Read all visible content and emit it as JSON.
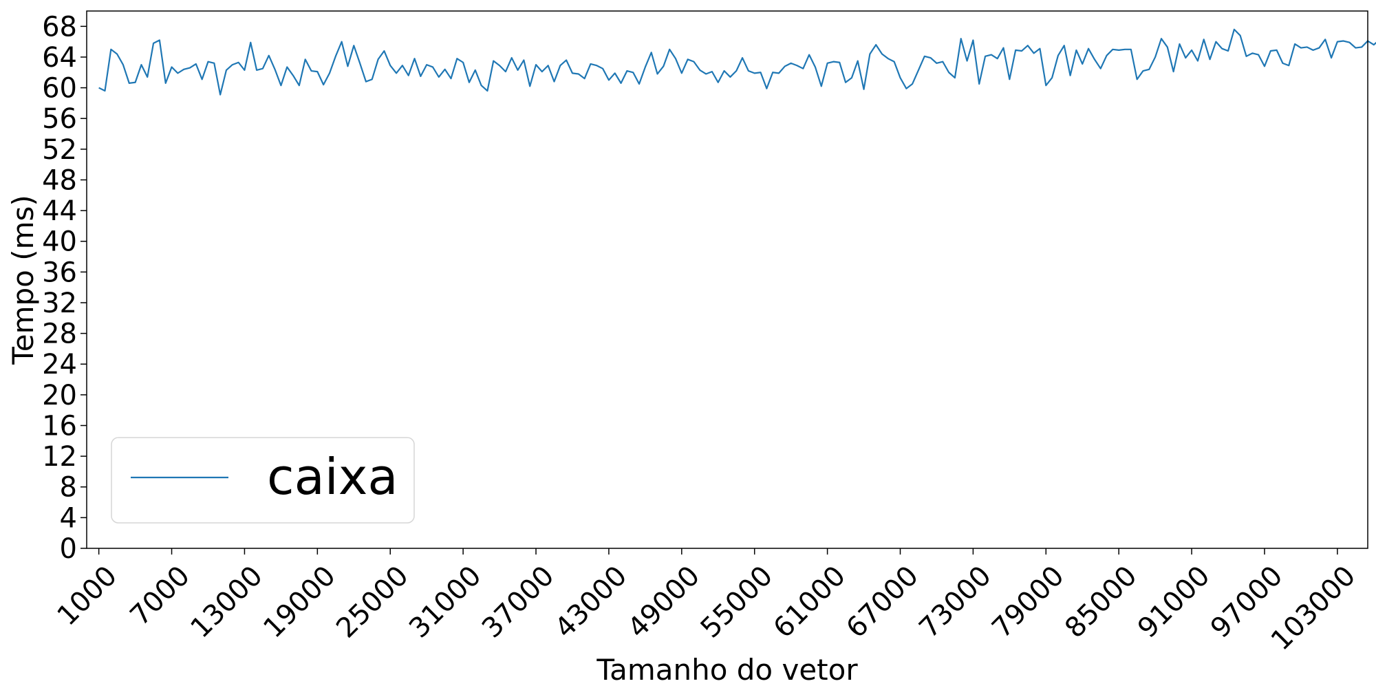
{
  "chart_data": {
    "type": "line",
    "title": "",
    "xlabel": "Tamanho do vetor",
    "ylabel": "Tempo (ms)",
    "xlim": [
      0,
      105500
    ],
    "ylim": [
      0,
      70
    ],
    "x_ticks": [
      1000,
      7000,
      13000,
      19000,
      25000,
      31000,
      37000,
      43000,
      49000,
      55000,
      61000,
      67000,
      73000,
      79000,
      85000,
      91000,
      97000,
      103000
    ],
    "y_ticks": [
      0,
      4,
      8,
      12,
      16,
      20,
      24,
      28,
      32,
      36,
      40,
      44,
      48,
      52,
      56,
      60,
      64,
      68
    ],
    "grid": false,
    "legend_position": "lower-left",
    "colors": {
      "series": "#1f77b4"
    },
    "x_start": 1000,
    "x_step": 500,
    "series": [
      {
        "name": "caixa",
        "values": [
          60.0,
          59.6,
          65.0,
          64.4,
          63.0,
          60.6,
          60.7,
          63.0,
          61.4,
          65.8,
          66.2,
          60.6,
          62.7,
          61.9,
          62.4,
          62.6,
          63.1,
          61.1,
          63.4,
          63.2,
          59.1,
          62.3,
          63.0,
          63.3,
          62.3,
          65.9,
          62.3,
          62.5,
          64.2,
          62.4,
          60.3,
          62.7,
          61.6,
          60.3,
          63.7,
          62.2,
          62.1,
          60.4,
          61.9,
          64.1,
          66.0,
          62.8,
          65.5,
          63.2,
          60.8,
          61.1,
          63.7,
          64.8,
          62.9,
          61.9,
          62.9,
          61.6,
          63.8,
          61.5,
          63.0,
          62.7,
          61.4,
          62.4,
          61.2,
          63.8,
          63.3,
          60.7,
          62.3,
          60.3,
          59.6,
          63.5,
          62.9,
          62.1,
          63.9,
          62.3,
          63.6,
          60.2,
          63.0,
          62.1,
          62.9,
          60.8,
          62.9,
          63.6,
          61.9,
          61.8,
          61.2,
          63.1,
          62.9,
          62.5,
          61.0,
          61.9,
          60.6,
          62.2,
          62.0,
          60.5,
          62.7,
          64.6,
          61.8,
          62.8,
          65.0,
          63.8,
          61.9,
          63.7,
          63.4,
          62.3,
          61.8,
          62.1,
          60.7,
          62.2,
          61.4,
          62.2,
          63.9,
          62.2,
          61.9,
          62.0,
          59.9,
          62.0,
          61.9,
          62.8,
          63.2,
          62.9,
          62.5,
          64.3,
          62.7,
          60.2,
          63.2,
          63.4,
          63.3,
          60.7,
          61.3,
          63.5,
          59.8,
          64.4,
          65.6,
          64.4,
          63.8,
          63.4,
          61.3,
          59.9,
          60.5,
          62.3,
          64.1,
          63.9,
          63.2,
          63.4,
          62.0,
          61.3,
          66.4,
          63.5,
          66.2,
          60.5,
          64.1,
          64.3,
          63.8,
          65.2,
          61.1,
          64.9,
          64.8,
          65.5,
          64.5,
          65.1,
          60.3,
          61.3,
          64.2,
          65.5,
          61.6,
          64.9,
          63.1,
          65.1,
          63.7,
          62.5,
          64.2,
          65.0,
          64.9,
          65.0,
          65.0,
          61.1,
          62.2,
          62.4,
          64.0,
          66.4,
          65.3,
          62.1,
          65.7,
          63.9,
          64.9,
          63.5,
          66.3,
          63.7,
          66.0,
          65.1,
          64.8,
          67.6,
          66.8,
          64.1,
          64.5,
          64.3,
          62.8,
          64.8,
          64.9,
          63.2,
          62.9,
          65.7,
          65.2,
          65.3,
          64.9,
          65.2,
          66.3,
          63.9,
          66.0,
          66.1,
          65.9,
          65.2,
          65.3,
          66.1,
          65.6,
          66.3
        ]
      }
    ]
  }
}
